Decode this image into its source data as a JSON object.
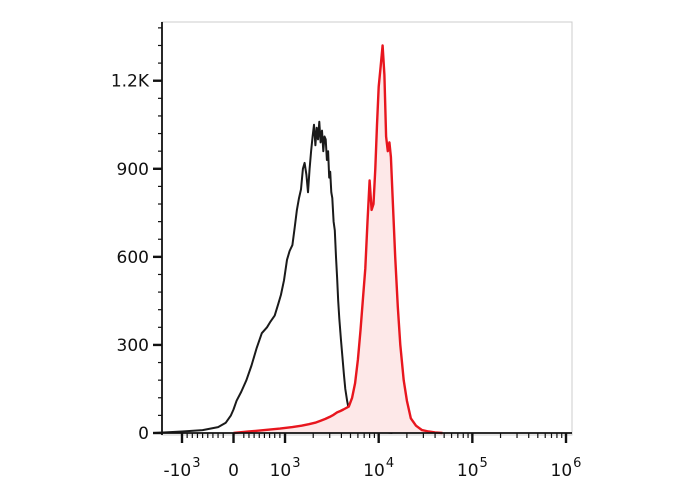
{
  "chart_data": {
    "type": "line",
    "title": "",
    "xlabel": "",
    "ylabel": "",
    "x_axis": {
      "scale": "biexponential",
      "ticks": [
        {
          "base": "-10",
          "exp": "3",
          "value": -1000
        },
        {
          "base": "0",
          "exp": "",
          "value": 0
        },
        {
          "base": "10",
          "exp": "3",
          "value": 1000
        },
        {
          "base": "10",
          "exp": "4",
          "value": 10000
        },
        {
          "base": "10",
          "exp": "5",
          "value": 100000
        },
        {
          "base": "10",
          "exp": "6",
          "value": 1000000
        }
      ]
    },
    "y_axis": {
      "ylim": [
        0,
        1400
      ],
      "ticks": [
        {
          "label": "0",
          "value": 0
        },
        {
          "label": "300",
          "value": 300
        },
        {
          "label": "600",
          "value": 600
        },
        {
          "label": "900",
          "value": 900
        },
        {
          "label": "1.2K",
          "value": 1200
        }
      ]
    },
    "series": [
      {
        "color": "#1a1a1a",
        "fill": "none",
        "points": [
          [
            -2000,
            0
          ],
          [
            -1000,
            5
          ],
          [
            -600,
            10
          ],
          [
            -300,
            20
          ],
          [
            -150,
            35
          ],
          [
            -50,
            60
          ],
          [
            0,
            80
          ],
          [
            60,
            110
          ],
          [
            150,
            140
          ],
          [
            250,
            180
          ],
          [
            350,
            230
          ],
          [
            450,
            290
          ],
          [
            550,
            340
          ],
          [
            650,
            360
          ],
          [
            720,
            380
          ],
          [
            800,
            400
          ],
          [
            870,
            440
          ],
          [
            920,
            470
          ],
          [
            980,
            520
          ],
          [
            1050,
            590
          ],
          [
            1120,
            620
          ],
          [
            1200,
            640
          ],
          [
            1270,
            700
          ],
          [
            1340,
            760
          ],
          [
            1410,
            800
          ],
          [
            1480,
            830
          ],
          [
            1550,
            900
          ],
          [
            1620,
            920
          ],
          [
            1690,
            880
          ],
          [
            1760,
            820
          ],
          [
            1830,
            900
          ],
          [
            1900,
            960
          ],
          [
            1970,
            1010
          ],
          [
            2040,
            1050
          ],
          [
            2110,
            980
          ],
          [
            2180,
            1040
          ],
          [
            2250,
            1000
          ],
          [
            2320,
            1060
          ],
          [
            2400,
            990
          ],
          [
            2480,
            1030
          ],
          [
            2560,
            960
          ],
          [
            2640,
            1010
          ],
          [
            2720,
            1000
          ],
          [
            2800,
            930
          ],
          [
            2880,
            960
          ],
          [
            2960,
            870
          ],
          [
            3040,
            890
          ],
          [
            3120,
            820
          ],
          [
            3200,
            800
          ],
          [
            3300,
            720
          ],
          [
            3400,
            690
          ],
          [
            3500,
            600
          ],
          [
            3600,
            530
          ],
          [
            3700,
            450
          ],
          [
            3800,
            390
          ],
          [
            3950,
            320
          ],
          [
            4100,
            260
          ],
          [
            4250,
            200
          ],
          [
            4400,
            150
          ],
          [
            4600,
            110
          ],
          [
            4800,
            80
          ],
          [
            5100,
            60
          ],
          [
            5500,
            45
          ],
          [
            6000,
            30
          ],
          [
            6800,
            20
          ],
          [
            7800,
            12
          ],
          [
            9000,
            8
          ],
          [
            10500,
            4
          ],
          [
            12000,
            2
          ],
          [
            14000,
            0
          ]
        ]
      },
      {
        "color": "#e8161e",
        "fill": "#fde8e8",
        "points": [
          [
            0,
            0
          ],
          [
            300,
            5
          ],
          [
            600,
            10
          ],
          [
            900,
            15
          ],
          [
            1200,
            20
          ],
          [
            1500,
            25
          ],
          [
            1800,
            30
          ],
          [
            2100,
            35
          ],
          [
            2400,
            42
          ],
          [
            2700,
            48
          ],
          [
            3000,
            55
          ],
          [
            3300,
            62
          ],
          [
            3600,
            70
          ],
          [
            3900,
            75
          ],
          [
            4200,
            80
          ],
          [
            4500,
            85
          ],
          [
            4800,
            90
          ],
          [
            5200,
            120
          ],
          [
            5600,
            170
          ],
          [
            6000,
            250
          ],
          [
            6400,
            350
          ],
          [
            6800,
            460
          ],
          [
            7200,
            560
          ],
          [
            7600,
            720
          ],
          [
            8000,
            860
          ],
          [
            8400,
            760
          ],
          [
            8800,
            780
          ],
          [
            9200,
            900
          ],
          [
            9600,
            1050
          ],
          [
            10000,
            1180
          ],
          [
            10500,
            1250
          ],
          [
            11000,
            1320
          ],
          [
            11500,
            1220
          ],
          [
            12000,
            1010
          ],
          [
            12500,
            960
          ],
          [
            13000,
            990
          ],
          [
            13500,
            940
          ],
          [
            14000,
            820
          ],
          [
            15000,
            600
          ],
          [
            16000,
            430
          ],
          [
            17000,
            300
          ],
          [
            18500,
            180
          ],
          [
            20000,
            110
          ],
          [
            22000,
            50
          ],
          [
            25000,
            25
          ],
          [
            29000,
            10
          ],
          [
            34000,
            5
          ],
          [
            40000,
            2
          ],
          [
            48000,
            0
          ]
        ]
      }
    ]
  }
}
